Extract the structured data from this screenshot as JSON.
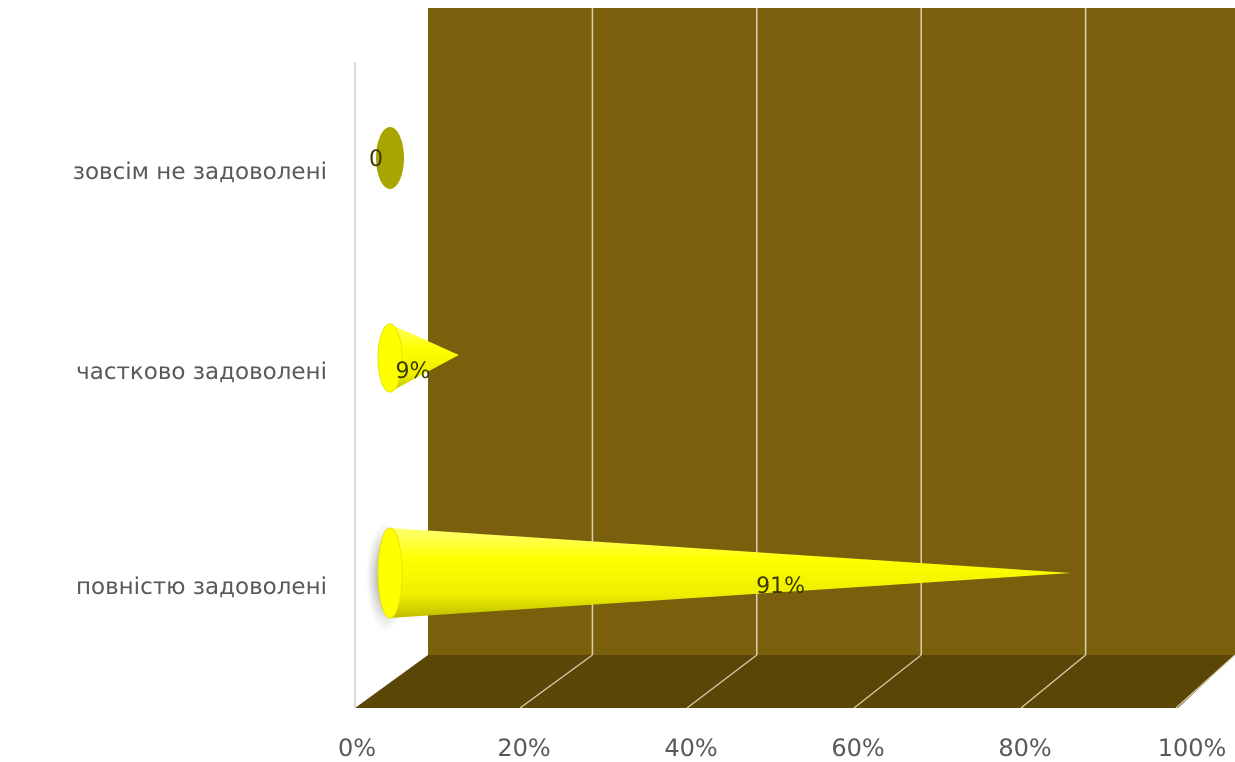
{
  "chart_data": {
    "type": "bar",
    "categories": [
      "зовсім не задоволені",
      "частково задоволені",
      "повністю задоволені"
    ],
    "values": [
      0,
      9,
      91
    ],
    "data_labels": [
      "0",
      "9%",
      "91%"
    ],
    "xlim": [
      0,
      100
    ],
    "x_ticks": [
      0,
      20,
      40,
      60,
      80,
      100
    ],
    "x_tick_labels": [
      "0%",
      "20%",
      "40%",
      "60%",
      "80%",
      "100%"
    ],
    "title": "",
    "xlabel": "",
    "ylabel": "",
    "grid": true,
    "legend": "none",
    "style": "3d-cone-horizontal",
    "colors": {
      "back_wall": "#7a5f0c",
      "floor": "#5a4707",
      "gridline": "#d9d2b0",
      "cone": "#ffff00",
      "cone_dark": "#c8c800",
      "zero_cone": "#a8a400",
      "axis_line": "#d9d9d9"
    }
  }
}
